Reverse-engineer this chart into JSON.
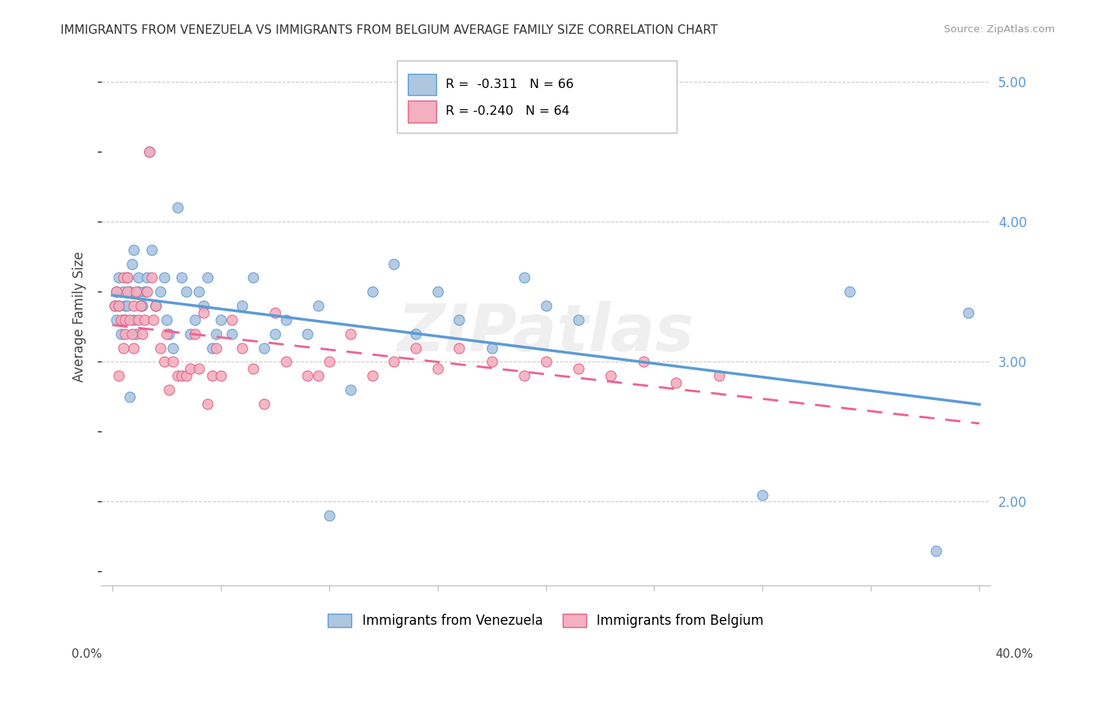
{
  "title": "IMMIGRANTS FROM VENEZUELA VS IMMIGRANTS FROM BELGIUM AVERAGE FAMILY SIZE CORRELATION CHART",
  "source": "Source: ZipAtlas.com",
  "ylabel": "Average Family Size",
  "watermark": "ZIPatlas",
  "xlim": [
    -0.005,
    0.405
  ],
  "ylim": [
    1.4,
    5.25
  ],
  "venezuela_face_color": "#aec6e0",
  "venezuela_edge_color": "#5b9bd5",
  "belgium_face_color": "#f4afc0",
  "belgium_edge_color": "#e06080",
  "venezuela_line_color": "#5b9bd5",
  "belgium_line_color": "#f06090",
  "legend_label_venezuela": "Immigrants from Venezuela",
  "legend_label_belgium": "Immigrants from Belgium",
  "right_ytick_color": "#5b9bd5",
  "venezuela_x": [
    0.001,
    0.002,
    0.002,
    0.003,
    0.003,
    0.004,
    0.005,
    0.005,
    0.006,
    0.006,
    0.007,
    0.007,
    0.008,
    0.009,
    0.01,
    0.01,
    0.011,
    0.012,
    0.013,
    0.014,
    0.015,
    0.016,
    0.017,
    0.018,
    0.02,
    0.022,
    0.024,
    0.025,
    0.026,
    0.028,
    0.03,
    0.032,
    0.034,
    0.036,
    0.038,
    0.04,
    0.042,
    0.044,
    0.046,
    0.048,
    0.05,
    0.055,
    0.06,
    0.065,
    0.07,
    0.075,
    0.08,
    0.09,
    0.095,
    0.1,
    0.11,
    0.12,
    0.13,
    0.14,
    0.15,
    0.16,
    0.175,
    0.19,
    0.2,
    0.215,
    0.3,
    0.34,
    0.38,
    0.395,
    0.008,
    0.012,
    0.02
  ],
  "venezuela_y": [
    3.4,
    3.5,
    3.3,
    3.6,
    3.4,
    3.2,
    3.5,
    3.3,
    3.4,
    3.3,
    3.6,
    3.4,
    3.5,
    3.7,
    3.3,
    3.8,
    3.2,
    3.6,
    3.4,
    3.4,
    3.5,
    3.6,
    4.5,
    3.8,
    3.4,
    3.5,
    3.6,
    3.3,
    3.2,
    3.1,
    4.1,
    3.6,
    3.5,
    3.2,
    3.3,
    3.5,
    3.4,
    3.6,
    3.1,
    3.2,
    3.3,
    3.2,
    3.4,
    3.6,
    3.1,
    3.2,
    3.3,
    3.2,
    3.4,
    1.9,
    2.8,
    3.5,
    3.7,
    3.2,
    3.5,
    3.3,
    3.1,
    3.6,
    3.4,
    3.3,
    2.05,
    3.5,
    1.65,
    3.35,
    2.75,
    3.5,
    3.4
  ],
  "belgium_x": [
    0.001,
    0.002,
    0.003,
    0.003,
    0.004,
    0.005,
    0.005,
    0.006,
    0.006,
    0.007,
    0.007,
    0.008,
    0.009,
    0.01,
    0.01,
    0.011,
    0.012,
    0.013,
    0.014,
    0.015,
    0.016,
    0.017,
    0.018,
    0.019,
    0.02,
    0.022,
    0.024,
    0.025,
    0.026,
    0.028,
    0.03,
    0.032,
    0.034,
    0.036,
    0.038,
    0.04,
    0.042,
    0.044,
    0.046,
    0.048,
    0.05,
    0.055,
    0.06,
    0.065,
    0.07,
    0.075,
    0.08,
    0.09,
    0.095,
    0.1,
    0.11,
    0.12,
    0.13,
    0.14,
    0.15,
    0.16,
    0.175,
    0.19,
    0.2,
    0.215,
    0.23,
    0.245,
    0.26,
    0.28
  ],
  "belgium_y": [
    3.4,
    3.5,
    3.4,
    2.9,
    3.3,
    3.6,
    3.1,
    3.3,
    3.2,
    3.5,
    3.6,
    3.3,
    3.2,
    3.1,
    3.4,
    3.5,
    3.3,
    3.4,
    3.2,
    3.3,
    3.5,
    4.5,
    3.6,
    3.3,
    3.4,
    3.1,
    3.0,
    3.2,
    2.8,
    3.0,
    2.9,
    2.9,
    2.9,
    2.95,
    3.2,
    2.95,
    3.35,
    2.7,
    2.9,
    3.1,
    2.9,
    3.3,
    3.1,
    2.95,
    2.7,
    3.35,
    3.0,
    2.9,
    2.9,
    3.0,
    3.2,
    2.9,
    3.0,
    3.1,
    2.95,
    3.1,
    3.0,
    2.9,
    3.0,
    2.95,
    2.9,
    3.0,
    2.85,
    2.9
  ]
}
